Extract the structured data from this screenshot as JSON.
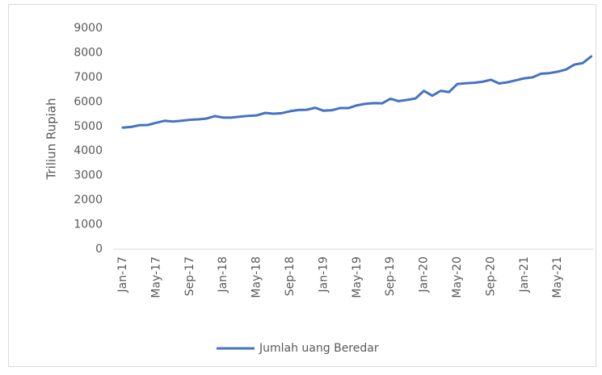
{
  "chart_data": {
    "type": "line",
    "y_label": "Triliun Rupiah",
    "categories": [
      "Jan-17",
      null,
      null,
      null,
      "May-17",
      null,
      null,
      null,
      "Sep-17",
      null,
      null,
      null,
      "Jan-18",
      null,
      null,
      null,
      "May-18",
      null,
      null,
      null,
      "Sep-18",
      null,
      null,
      null,
      "Jan-19",
      null,
      null,
      null,
      "May-19",
      null,
      null,
      null,
      "Sep-19",
      null,
      null,
      null,
      "Jan-20",
      null,
      null,
      null,
      "May-20",
      null,
      null,
      null,
      "Sep-20",
      null,
      null,
      null,
      "Jan-21",
      null,
      null,
      null,
      "May-21",
      null,
      null,
      null,
      null
    ],
    "series": [
      {
        "name": "Jumlah uang Beredar",
        "color": "#4472c4",
        "values": [
          4950,
          4980,
          5050,
          5060,
          5150,
          5230,
          5200,
          5230,
          5270,
          5290,
          5320,
          5420,
          5360,
          5360,
          5400,
          5430,
          5450,
          5550,
          5520,
          5540,
          5620,
          5670,
          5680,
          5760,
          5640,
          5660,
          5750,
          5750,
          5860,
          5920,
          5950,
          5940,
          6130,
          6030,
          6080,
          6140,
          6450,
          6250,
          6450,
          6400,
          6730,
          6760,
          6780,
          6820,
          6900,
          6750,
          6800,
          6880,
          6960,
          7000,
          7150,
          7170,
          7230,
          7320,
          7520,
          7580,
          7850
        ]
      }
    ],
    "ylim": [
      0,
      9000
    ],
    "yticks": [
      0,
      1000,
      2000,
      3000,
      4000,
      5000,
      6000,
      7000,
      8000,
      9000
    ],
    "grid": false,
    "legend": "bottom"
  }
}
